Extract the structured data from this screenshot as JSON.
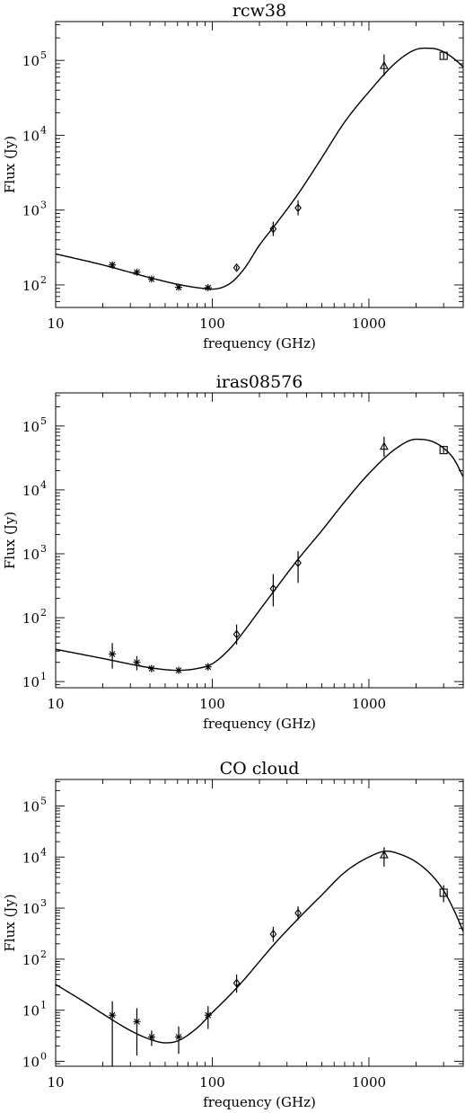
{
  "chart_data": [
    {
      "type": "scatter",
      "title": "rcw38",
      "xlabel": "frequency (GHz)",
      "ylabel": "Flux (Jy)",
      "xscale": "log",
      "yscale": "log",
      "xlim": [
        10,
        4000
      ],
      "ylim": [
        50,
        330000
      ],
      "xticks": [
        10,
        100,
        1000
      ],
      "xtick_labels": [
        "10",
        "100",
        "1000"
      ],
      "yticks": [
        {
          "value": 100,
          "base": "10",
          "exp": "2"
        },
        {
          "value": 1000,
          "base": "10",
          "exp": "3"
        },
        {
          "value": 10000,
          "base": "10",
          "exp": "4"
        },
        {
          "value": 100000,
          "base": "10",
          "exp": "5"
        }
      ],
      "series": [
        {
          "marker": "asterisk",
          "x": [
            23,
            33,
            41,
            61,
            94
          ],
          "y": [
            185,
            148,
            120,
            93,
            92
          ],
          "yerr_low": [
            165,
            138,
            112,
            87,
            85
          ],
          "yerr_high": [
            205,
            158,
            128,
            99,
            99
          ]
        },
        {
          "marker": "diamond",
          "x": [
            143,
            245,
            353
          ],
          "y": [
            170,
            560,
            1070
          ],
          "yerr_low": [
            160,
            450,
            850
          ],
          "yerr_high": [
            180,
            700,
            1350
          ]
        },
        {
          "marker": "triangle",
          "x": [
            1250
          ],
          "y": [
            85000
          ],
          "yerr_low": [
            62000
          ],
          "yerr_high": [
            120000
          ]
        },
        {
          "marker": "square",
          "x": [
            3000
          ],
          "y": [
            115000
          ],
          "yerr_low": [
            105000
          ],
          "yerr_high": [
            126000
          ]
        }
      ],
      "model": {
        "x": [
          10,
          20,
          40,
          60,
          80,
          100,
          130,
          160,
          200,
          250,
          350,
          500,
          700,
          1000,
          1500,
          2000,
          2500,
          3000,
          3500,
          4000
        ],
        "y": [
          260,
          185,
          125,
          102,
          92,
          88,
          105,
          165,
          340,
          620,
          1600,
          5000,
          15000,
          38000,
          95000,
          140000,
          145000,
          130000,
          105000,
          82000
        ]
      }
    },
    {
      "type": "scatter",
      "title": "iras08576",
      "xlabel": "frequency (GHz)",
      "ylabel": "Flux (Jy)",
      "xscale": "log",
      "yscale": "log",
      "xlim": [
        10,
        4000
      ],
      "ylim": [
        8,
        330000
      ],
      "xticks": [
        10,
        100,
        1000
      ],
      "xtick_labels": [
        "10",
        "100",
        "1000"
      ],
      "yticks": [
        {
          "value": 10,
          "base": "10",
          "exp": "1"
        },
        {
          "value": 100,
          "base": "10",
          "exp": "2"
        },
        {
          "value": 1000,
          "base": "10",
          "exp": "3"
        },
        {
          "value": 10000,
          "base": "10",
          "exp": "4"
        },
        {
          "value": 100000,
          "base": "10",
          "exp": "5"
        }
      ],
      "series": [
        {
          "marker": "asterisk",
          "x": [
            23,
            33,
            41,
            61,
            94
          ],
          "y": [
            27,
            20,
            16,
            15,
            17
          ],
          "yerr_low": [
            16,
            15,
            14,
            13.5,
            15
          ],
          "yerr_high": [
            40,
            25,
            18,
            16.5,
            19
          ]
        },
        {
          "marker": "diamond",
          "x": [
            143,
            245,
            353
          ],
          "y": [
            55,
            285,
            720
          ],
          "yerr_low": [
            38,
            150,
            350
          ],
          "yerr_high": [
            78,
            480,
            1100
          ]
        },
        {
          "marker": "triangle",
          "x": [
            1250
          ],
          "y": [
            48000
          ],
          "yerr_low": [
            33000
          ],
          "yerr_high": [
            68000
          ]
        },
        {
          "marker": "square",
          "x": [
            3000
          ],
          "y": [
            42000
          ],
          "yerr_low": [
            38000
          ],
          "yerr_high": [
            46000
          ]
        }
      ],
      "model": {
        "x": [
          10,
          20,
          40,
          60,
          80,
          100,
          130,
          160,
          200,
          250,
          350,
          500,
          700,
          1000,
          1500,
          2000,
          2500,
          3000,
          3500,
          4000
        ],
        "y": [
          32,
          23,
          16.5,
          15,
          16,
          19,
          33,
          62,
          130,
          270,
          800,
          2300,
          6500,
          18000,
          45000,
          62000,
          58000,
          45000,
          30000,
          16000
        ]
      }
    },
    {
      "type": "scatter",
      "title": "CO cloud",
      "xlabel": "frequency (GHz)",
      "ylabel": "Flux (Jy)",
      "xscale": "log",
      "yscale": "log",
      "xlim": [
        10,
        4000
      ],
      "ylim": [
        0.8,
        330000
      ],
      "xticks": [
        10,
        100,
        1000
      ],
      "xtick_labels": [
        "10",
        "100",
        "1000"
      ],
      "yticks": [
        {
          "value": 1,
          "base": "10",
          "exp": "0"
        },
        {
          "value": 10,
          "base": "10",
          "exp": "1"
        },
        {
          "value": 100,
          "base": "10",
          "exp": "2"
        },
        {
          "value": 1000,
          "base": "10",
          "exp": "3"
        },
        {
          "value": 10000,
          "base": "10",
          "exp": "4"
        },
        {
          "value": 100000,
          "base": "10",
          "exp": "5"
        }
      ],
      "series": [
        {
          "marker": "asterisk",
          "x": [
            23,
            33,
            41,
            61,
            94
          ],
          "y": [
            8,
            6,
            3,
            3,
            8
          ],
          "yerr_low": [
            0.8,
            1.3,
            2,
            1.4,
            4.3
          ],
          "yerr_high": [
            15,
            11,
            4,
            4.8,
            12
          ]
        },
        {
          "marker": "diamond",
          "x": [
            143,
            245,
            353
          ],
          "y": [
            34,
            310,
            800
          ],
          "yerr_low": [
            22,
            220,
            580
          ],
          "yerr_high": [
            50,
            430,
            1080
          ]
        },
        {
          "marker": "triangle",
          "x": [
            1250
          ],
          "y": [
            11000
          ],
          "yerr_low": [
            6500
          ],
          "yerr_high": [
            15500
          ]
        },
        {
          "marker": "square",
          "x": [
            3000
          ],
          "y": [
            2000
          ],
          "yerr_low": [
            1300
          ],
          "yerr_high": [
            2800
          ]
        }
      ],
      "model": {
        "x": [
          10,
          15,
          20,
          30,
          40,
          50,
          60,
          80,
          100,
          130,
          160,
          200,
          250,
          350,
          500,
          700,
          1000,
          1300,
          1500,
          2000,
          2500,
          3000,
          3500,
          4000
        ],
        "y": [
          32,
          15,
          8.5,
          4,
          2.7,
          2.3,
          2.5,
          4.5,
          9,
          20,
          40,
          90,
          200,
          600,
          1800,
          5000,
          10000,
          13000,
          12000,
          8000,
          4500,
          2200,
          900,
          350
        ]
      }
    }
  ]
}
